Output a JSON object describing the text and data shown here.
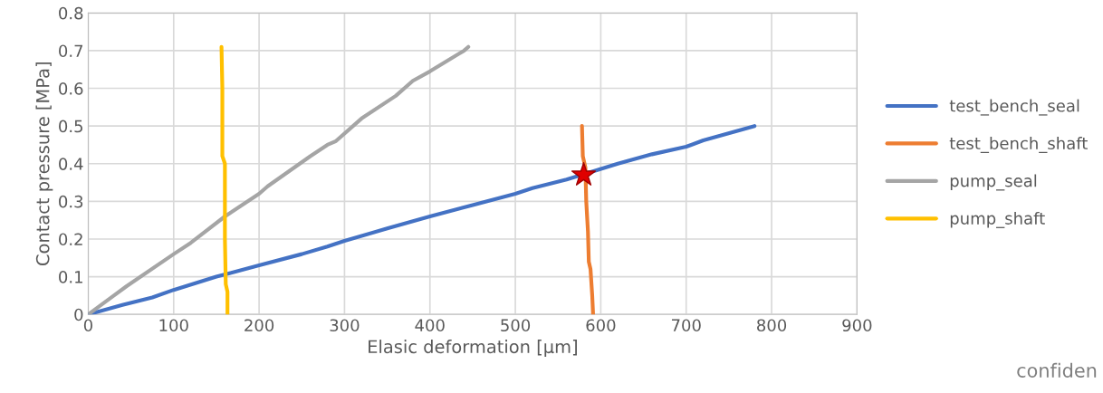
{
  "chart_data": {
    "type": "line",
    "xlabel": "Elasic deformation [µm]",
    "ylabel": "Contact pressure [MPa]",
    "xlim": [
      0,
      900
    ],
    "xticks": [
      0,
      100,
      200,
      300,
      400,
      500,
      600,
      700,
      800,
      900
    ],
    "ylim": [
      0,
      0.8
    ],
    "yticks": [
      0,
      0.1,
      0.2,
      0.3,
      0.4,
      0.5,
      0.6,
      0.7,
      0.8
    ],
    "grid": true,
    "legend": "right",
    "marker": "none",
    "line_style": "solid",
    "annotations": [
      "confiden"
    ],
    "series": [
      {
        "name": "test_bench_seal",
        "color": "#4472c4",
        "x": [
          0,
          40,
          75,
          100,
          150,
          200,
          250,
          280,
          300,
          350,
          400,
          450,
          500,
          520,
          560,
          620,
          660,
          700,
          720,
          780
        ],
        "values": [
          0,
          0.025,
          0.045,
          0.065,
          0.1,
          0.13,
          0.16,
          0.18,
          0.195,
          0.228,
          0.26,
          0.29,
          0.32,
          0.335,
          0.358,
          0.4,
          0.425,
          0.445,
          0.462,
          0.5
        ]
      },
      {
        "name": "test_bench_shaft",
        "color": "#ed7d31",
        "x": [
          578,
          579,
          582,
          583,
          585,
          586,
          588,
          590,
          591
        ],
        "values": [
          0.5,
          0.42,
          0.39,
          0.3,
          0.22,
          0.14,
          0.12,
          0.05,
          0
        ]
      },
      {
        "name": "pump_seal",
        "color": "#a5a5a5",
        "x": [
          0,
          30,
          45,
          100,
          120,
          160,
          200,
          210,
          260,
          280,
          290,
          320,
          360,
          380,
          400,
          440,
          445
        ],
        "values": [
          0,
          0.05,
          0.075,
          0.16,
          0.19,
          0.26,
          0.32,
          0.34,
          0.42,
          0.45,
          0.46,
          0.52,
          0.58,
          0.62,
          0.645,
          0.7,
          0.71
        ]
      },
      {
        "name": "pump_shaft",
        "color": "#ffc000",
        "x": [
          156,
          157,
          157,
          160,
          160,
          161,
          163,
          163
        ],
        "values": [
          0.71,
          0.6,
          0.42,
          0.4,
          0.2,
          0.08,
          0.06,
          0
        ]
      },
      {
        "type": "scatter",
        "color": "#e00000",
        "marker": "star",
        "x": [
          580
        ],
        "values": [
          0.37
        ]
      }
    ]
  }
}
